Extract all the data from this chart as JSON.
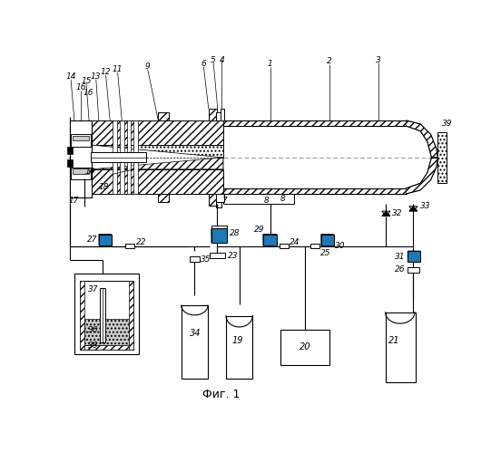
{
  "bg_color": "#ffffff",
  "fig_width": 5.52,
  "fig_height": 4.99,
  "dpi": 100,
  "caption": "Фиг. 1"
}
